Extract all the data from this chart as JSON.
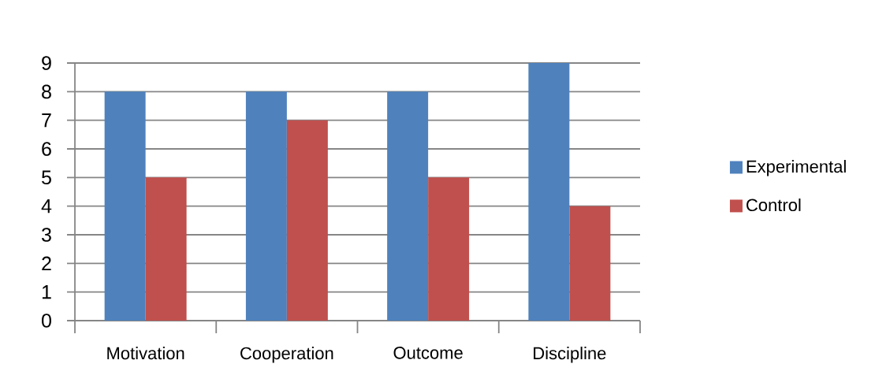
{
  "chart_data": {
    "type": "bar",
    "categories": [
      "Motivation",
      "Cooperation",
      "Outcome",
      "Discipline"
    ],
    "series": [
      {
        "name": "Experimental",
        "color": "#4f81bd",
        "values": [
          8,
          8,
          8,
          9
        ]
      },
      {
        "name": "Control",
        "color": "#c0504d",
        "values": [
          5,
          7,
          5,
          4
        ]
      }
    ],
    "ylim": [
      0,
      9
    ],
    "yticks": [
      0,
      1,
      2,
      3,
      4,
      5,
      6,
      7,
      8,
      9
    ],
    "grid": "y",
    "legend": "right"
  }
}
